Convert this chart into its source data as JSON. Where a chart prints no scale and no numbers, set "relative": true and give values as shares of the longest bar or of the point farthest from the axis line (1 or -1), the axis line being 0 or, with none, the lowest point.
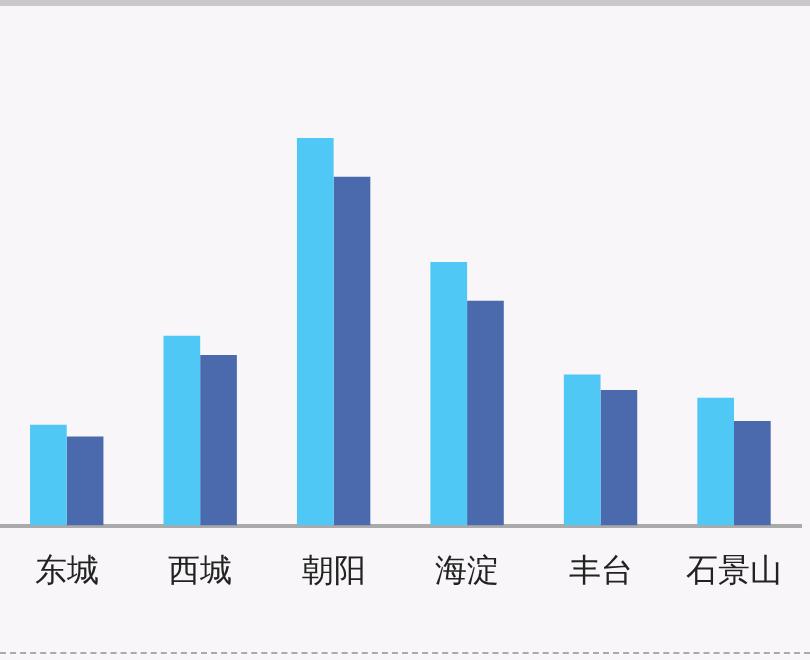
{
  "chart_data": {
    "type": "bar",
    "relative": true,
    "categories": [
      "东城",
      "西城",
      "朝阳",
      "海淀",
      "丰台",
      "石景山"
    ],
    "series": [
      {
        "color": "#4fc8f5",
        "values": [
          0.26,
          0.49,
          1,
          0.68,
          0.39,
          0.33
        ]
      },
      {
        "color": "#4a6aad",
        "values": [
          0.23,
          0.44,
          0.9,
          0.58,
          0.35,
          0.27
        ]
      }
    ],
    "grid": false,
    "legend": false
  }
}
